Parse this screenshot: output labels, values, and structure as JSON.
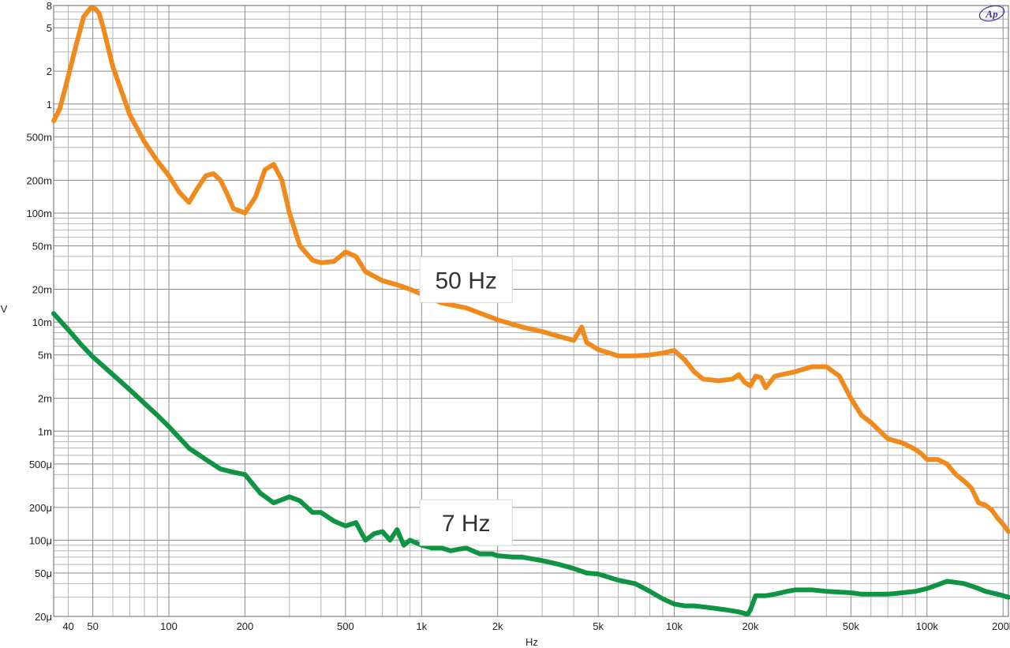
{
  "logo": {
    "text": "Ap"
  },
  "chart_data": {
    "type": "line",
    "title": "",
    "xlabel": "Hz",
    "ylabel": "V",
    "xscale": "log",
    "yscale": "log",
    "xlim": [
      35,
      210000
    ],
    "ylim": [
      2e-05,
      8
    ],
    "grid": true,
    "x_tick_labels": [
      {
        "value": 40,
        "label": "40"
      },
      {
        "value": 50,
        "label": "50"
      },
      {
        "value": 100,
        "label": "100"
      },
      {
        "value": 200,
        "label": "200"
      },
      {
        "value": 500,
        "label": "500"
      },
      {
        "value": 1000,
        "label": "1k"
      },
      {
        "value": 2000,
        "label": "2k"
      },
      {
        "value": 5000,
        "label": "5k"
      },
      {
        "value": 10000,
        "label": "10k"
      },
      {
        "value": 20000,
        "label": "20k"
      },
      {
        "value": 50000,
        "label": "50k"
      },
      {
        "value": 100000,
        "label": "100k"
      },
      {
        "value": 200000,
        "label": "200k"
      }
    ],
    "y_tick_labels": [
      {
        "value": 8,
        "label": "8"
      },
      {
        "value": 5,
        "label": "5"
      },
      {
        "value": 2,
        "label": "2"
      },
      {
        "value": 1,
        "label": "1"
      },
      {
        "value": 0.5,
        "label": "500m"
      },
      {
        "value": 0.2,
        "label": "200m"
      },
      {
        "value": 0.1,
        "label": "100m"
      },
      {
        "value": 0.05,
        "label": "50m"
      },
      {
        "value": 0.02,
        "label": "20m"
      },
      {
        "value": 0.01,
        "label": "10m"
      },
      {
        "value": 0.005,
        "label": "5m"
      },
      {
        "value": 0.002,
        "label": "2m"
      },
      {
        "value": 0.001,
        "label": "1m"
      },
      {
        "value": 0.0005,
        "label": "500μ"
      },
      {
        "value": 0.0002,
        "label": "200μ"
      },
      {
        "value": 0.0001,
        "label": "100μ"
      },
      {
        "value": 5e-05,
        "label": "50μ"
      },
      {
        "value": 2e-05,
        "label": "20μ"
      }
    ],
    "annotations": [
      {
        "text": "50 Hz",
        "x": 1500,
        "y": 0.0245,
        "series": 0
      },
      {
        "text": "7 Hz",
        "x": 1500,
        "y": 0.000145,
        "series": 1
      }
    ],
    "series": [
      {
        "color": "#f08a1c",
        "x": [
          35,
          37,
          40,
          43,
          46,
          49,
          51,
          53,
          55,
          60,
          70,
          80,
          90,
          100,
          110,
          120,
          130,
          140,
          150,
          160,
          170,
          180,
          200,
          220,
          240,
          260,
          280,
          300,
          330,
          370,
          400,
          450,
          500,
          550,
          600,
          700,
          800,
          900,
          1000,
          1200,
          1500,
          2000,
          2500,
          3000,
          3500,
          4000,
          4300,
          4500,
          5000,
          6000,
          7000,
          8000,
          9000,
          10000,
          11000,
          12000,
          13000,
          15000,
          17000,
          18000,
          19000,
          20000,
          21000,
          22000,
          23000,
          25000,
          30000,
          35000,
          40000,
          45000,
          50000,
          55000,
          60000,
          70000,
          80000,
          90000,
          95000,
          100000,
          110000,
          120000,
          130000,
          140000,
          150000,
          160000,
          170000,
          180000,
          190000,
          200000,
          210000
        ],
        "values": [
          0.7,
          0.9,
          1.8,
          3.5,
          6.3,
          7.6,
          7.5,
          6.8,
          5.0,
          2.2,
          0.8,
          0.45,
          0.3,
          0.22,
          0.155,
          0.125,
          0.17,
          0.22,
          0.23,
          0.2,
          0.15,
          0.11,
          0.1,
          0.14,
          0.25,
          0.28,
          0.2,
          0.1,
          0.05,
          0.037,
          0.035,
          0.036,
          0.044,
          0.04,
          0.029,
          0.024,
          0.022,
          0.02,
          0.018,
          0.015,
          0.0135,
          0.0105,
          0.009,
          0.0082,
          0.0074,
          0.0068,
          0.009,
          0.0065,
          0.0056,
          0.0049,
          0.0049,
          0.005,
          0.0052,
          0.0055,
          0.0045,
          0.0035,
          0.003,
          0.0029,
          0.003,
          0.0033,
          0.0028,
          0.0026,
          0.0032,
          0.0031,
          0.0025,
          0.0032,
          0.0035,
          0.0039,
          0.0039,
          0.0032,
          0.002,
          0.0014,
          0.0012,
          0.00085,
          0.00078,
          0.00068,
          0.00062,
          0.00055,
          0.00055,
          0.0005,
          0.0004,
          0.00035,
          0.0003,
          0.00022,
          0.00021,
          0.00019,
          0.00016,
          0.00014,
          0.00012
        ]
      },
      {
        "color": "#0f9443",
        "x": [
          35,
          40,
          45,
          50,
          60,
          70,
          80,
          90,
          100,
          120,
          140,
          160,
          180,
          200,
          230,
          260,
          300,
          330,
          370,
          400,
          450,
          500,
          550,
          600,
          650,
          700,
          750,
          800,
          850,
          900,
          1000,
          1100,
          1200,
          1300,
          1500,
          1700,
          1900,
          2000,
          2300,
          2500,
          3000,
          3500,
          4000,
          4500,
          5000,
          6000,
          7000,
          8000,
          9000,
          10000,
          11000,
          12000,
          14000,
          16000,
          18000,
          19500,
          20000,
          21000,
          23000,
          25000,
          28000,
          30000,
          35000,
          40000,
          50000,
          55000,
          60000,
          70000,
          80000,
          90000,
          100000,
          110000,
          120000,
          130000,
          140000,
          150000,
          160000,
          170000,
          180000,
          190000,
          200000,
          210000
        ],
        "values": [
          0.012,
          0.0085,
          0.0062,
          0.0048,
          0.0033,
          0.0024,
          0.0018,
          0.0014,
          0.0011,
          0.0007,
          0.00055,
          0.00045,
          0.00042,
          0.0004,
          0.00027,
          0.00022,
          0.00025,
          0.00023,
          0.00018,
          0.00018,
          0.00015,
          0.000135,
          0.000145,
          0.0001,
          0.000115,
          0.00012,
          0.0001,
          0.000125,
          9e-05,
          0.0001,
          9e-05,
          8.5e-05,
          8.5e-05,
          8e-05,
          8.5e-05,
          7.5e-05,
          7.5e-05,
          7.2e-05,
          7e-05,
          7e-05,
          6.5e-05,
          6e-05,
          5.5e-05,
          5e-05,
          4.9e-05,
          4.3e-05,
          4e-05,
          3.4e-05,
          2.9e-05,
          2.6e-05,
          2.5e-05,
          2.5e-05,
          2.4e-05,
          2.3e-05,
          2.2e-05,
          2.1e-05,
          2.3e-05,
          3.1e-05,
          3.1e-05,
          3.2e-05,
          3.4e-05,
          3.5e-05,
          3.5e-05,
          3.4e-05,
          3.3e-05,
          3.2e-05,
          3.2e-05,
          3.2e-05,
          3.3e-05,
          3.4e-05,
          3.6e-05,
          3.9e-05,
          4.2e-05,
          4.1e-05,
          4e-05,
          3.8e-05,
          3.6e-05,
          3.4e-05,
          3.3e-05,
          3.2e-05,
          3.1e-05,
          3e-05
        ]
      }
    ]
  }
}
